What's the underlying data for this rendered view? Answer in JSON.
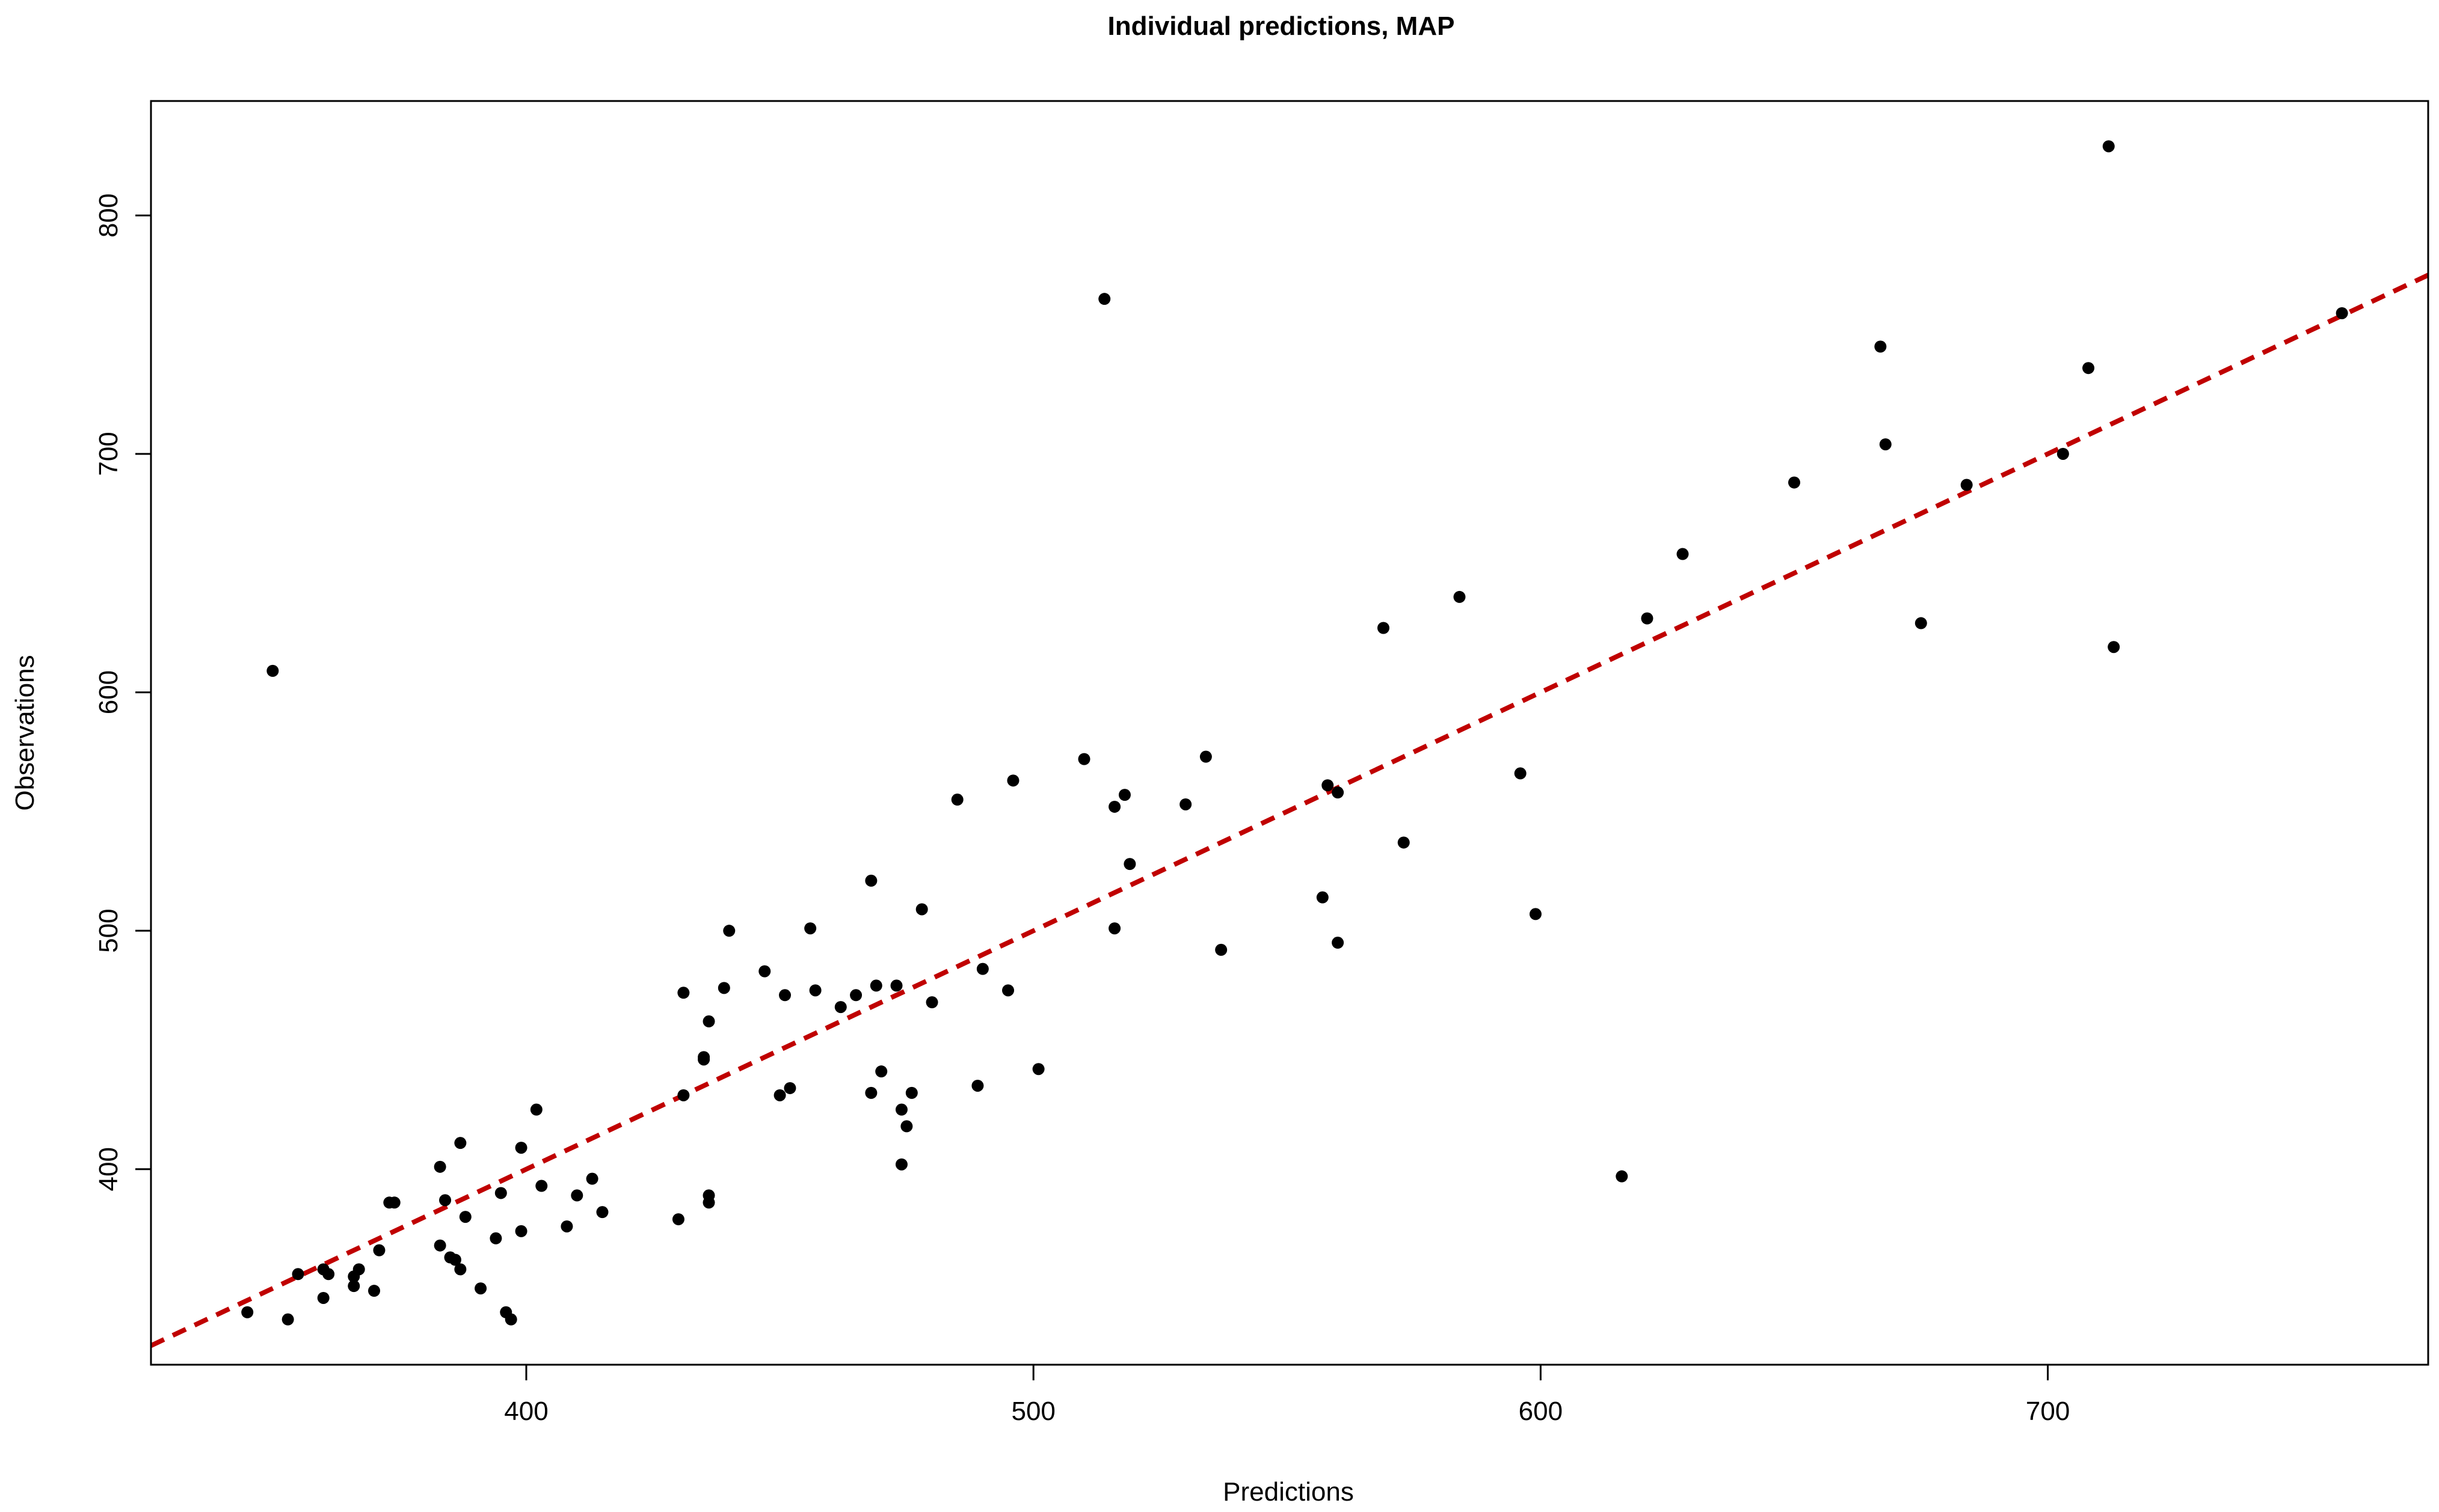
{
  "chart_data": {
    "type": "scatter",
    "title": "Individual predictions, MAP",
    "xlabel": "Predictions",
    "ylabel": "Observations",
    "xlim": [
      326,
      775
    ],
    "ylim": [
      318,
      848
    ],
    "xticks": [
      400,
      500,
      600,
      700
    ],
    "yticks": [
      400,
      500,
      600,
      700,
      800
    ],
    "grid": false,
    "legend": "none",
    "point_color": "#000000",
    "reference_line": {
      "type": "identity",
      "from": [
        326,
        326
      ],
      "to": [
        775,
        775
      ],
      "color": "#C00000",
      "style": "dashed"
    },
    "points": [
      {
        "x": 345,
        "y": 340
      },
      {
        "x": 350,
        "y": 609
      },
      {
        "x": 353,
        "y": 337
      },
      {
        "x": 355,
        "y": 356
      },
      {
        "x": 360,
        "y": 346
      },
      {
        "x": 360,
        "y": 358
      },
      {
        "x": 361,
        "y": 356
      },
      {
        "x": 366,
        "y": 351
      },
      {
        "x": 366,
        "y": 355
      },
      {
        "x": 367,
        "y": 358
      },
      {
        "x": 370,
        "y": 349
      },
      {
        "x": 371,
        "y": 366
      },
      {
        "x": 373,
        "y": 386
      },
      {
        "x": 374,
        "y": 386
      },
      {
        "x": 383,
        "y": 401
      },
      {
        "x": 383,
        "y": 368
      },
      {
        "x": 384,
        "y": 387
      },
      {
        "x": 385,
        "y": 363
      },
      {
        "x": 386,
        "y": 362
      },
      {
        "x": 387,
        "y": 358
      },
      {
        "x": 387,
        "y": 411
      },
      {
        "x": 388,
        "y": 380
      },
      {
        "x": 391,
        "y": 350
      },
      {
        "x": 394,
        "y": 371
      },
      {
        "x": 395,
        "y": 390
      },
      {
        "x": 396,
        "y": 340
      },
      {
        "x": 397,
        "y": 337
      },
      {
        "x": 399,
        "y": 409
      },
      {
        "x": 399,
        "y": 374
      },
      {
        "x": 402,
        "y": 425
      },
      {
        "x": 403,
        "y": 393
      },
      {
        "x": 408,
        "y": 376
      },
      {
        "x": 410,
        "y": 389
      },
      {
        "x": 413,
        "y": 396
      },
      {
        "x": 415,
        "y": 382
      },
      {
        "x": 430,
        "y": 379
      },
      {
        "x": 431,
        "y": 474
      },
      {
        "x": 431,
        "y": 431
      },
      {
        "x": 435,
        "y": 446
      },
      {
        "x": 435,
        "y": 447
      },
      {
        "x": 436,
        "y": 462
      },
      {
        "x": 436,
        "y": 389
      },
      {
        "x": 436,
        "y": 386
      },
      {
        "x": 439,
        "y": 476
      },
      {
        "x": 440,
        "y": 500
      },
      {
        "x": 447,
        "y": 483
      },
      {
        "x": 450,
        "y": 431
      },
      {
        "x": 451,
        "y": 473
      },
      {
        "x": 452,
        "y": 434
      },
      {
        "x": 456,
        "y": 501
      },
      {
        "x": 457,
        "y": 475
      },
      {
        "x": 462,
        "y": 468
      },
      {
        "x": 465,
        "y": 473
      },
      {
        "x": 468,
        "y": 521
      },
      {
        "x": 468,
        "y": 432
      },
      {
        "x": 469,
        "y": 477
      },
      {
        "x": 470,
        "y": 441
      },
      {
        "x": 473,
        "y": 477
      },
      {
        "x": 474,
        "y": 425
      },
      {
        "x": 474,
        "y": 402
      },
      {
        "x": 475,
        "y": 418
      },
      {
        "x": 476,
        "y": 432
      },
      {
        "x": 478,
        "y": 509
      },
      {
        "x": 480,
        "y": 470
      },
      {
        "x": 485,
        "y": 555
      },
      {
        "x": 489,
        "y": 435
      },
      {
        "x": 490,
        "y": 484
      },
      {
        "x": 495,
        "y": 475
      },
      {
        "x": 496,
        "y": 563
      },
      {
        "x": 501,
        "y": 442
      },
      {
        "x": 510,
        "y": 572
      },
      {
        "x": 514,
        "y": 765
      },
      {
        "x": 516,
        "y": 552
      },
      {
        "x": 516,
        "y": 501
      },
      {
        "x": 518,
        "y": 557
      },
      {
        "x": 519,
        "y": 528
      },
      {
        "x": 530,
        "y": 553
      },
      {
        "x": 534,
        "y": 573
      },
      {
        "x": 537,
        "y": 492
      },
      {
        "x": 557,
        "y": 514
      },
      {
        "x": 558,
        "y": 561
      },
      {
        "x": 560,
        "y": 558
      },
      {
        "x": 560,
        "y": 495
      },
      {
        "x": 569,
        "y": 627
      },
      {
        "x": 573,
        "y": 537
      },
      {
        "x": 584,
        "y": 640
      },
      {
        "x": 596,
        "y": 566
      },
      {
        "x": 599,
        "y": 507
      },
      {
        "x": 616,
        "y": 397
      },
      {
        "x": 621,
        "y": 631
      },
      {
        "x": 628,
        "y": 658
      },
      {
        "x": 650,
        "y": 688
      },
      {
        "x": 667,
        "y": 745
      },
      {
        "x": 668,
        "y": 704
      },
      {
        "x": 675,
        "y": 629
      },
      {
        "x": 684,
        "y": 687
      },
      {
        "x": 703,
        "y": 700
      },
      {
        "x": 708,
        "y": 736
      },
      {
        "x": 712,
        "y": 829
      },
      {
        "x": 713,
        "y": 619
      },
      {
        "x": 758,
        "y": 759
      }
    ]
  }
}
